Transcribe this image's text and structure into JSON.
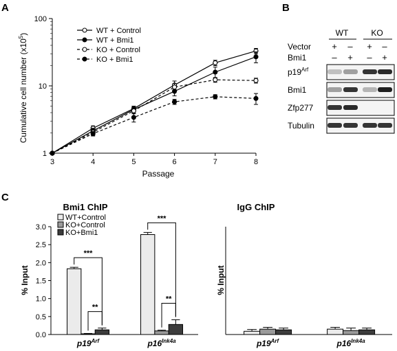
{
  "panels": {
    "a": "A",
    "b": "B",
    "c": "C"
  },
  "chart_data": [
    {
      "type": "line",
      "panel": "A",
      "xlabel": "Passage",
      "ylabel": "Cumulative cell number (x10",
      "ylabel_sup": "5",
      "ylabel_end": ")",
      "yscale": "log",
      "ylim": [
        1,
        100
      ],
      "xlim": [
        3,
        8
      ],
      "x": [
        3,
        4,
        5,
        6,
        7,
        8
      ],
      "xticks": [
        "3",
        "4",
        "5",
        "6",
        "7",
        "8"
      ],
      "yticks": [
        "1",
        "10",
        "100"
      ],
      "legend_position": "top-left",
      "series": [
        {
          "name": "WT + Control",
          "marker": "open",
          "dash": false,
          "values": [
            1,
            2.35,
            4.6,
            10.3,
            22,
            33
          ],
          "err": [
            0,
            0.2,
            0.4,
            1.5,
            2,
            3
          ]
        },
        {
          "name": "WT + Bmi1",
          "marker": "filled",
          "dash": false,
          "values": [
            1,
            2.15,
            4.45,
            8.3,
            16,
            27
          ],
          "err": [
            0,
            0.2,
            0.4,
            1.2,
            3,
            5
          ]
        },
        {
          "name": "KO + Control",
          "marker": "open",
          "dash": true,
          "values": [
            1,
            2.05,
            4.25,
            9.6,
            12.3,
            12
          ],
          "err": [
            0,
            0.2,
            0.4,
            1.2,
            1.0,
            1
          ]
        },
        {
          "name": "KO + Bmi1",
          "marker": "filled",
          "dash": true,
          "values": [
            1,
            1.95,
            3.4,
            5.8,
            6.9,
            6.5
          ],
          "err": [
            0,
            0.15,
            0.5,
            0.5,
            0.5,
            1.2
          ]
        }
      ]
    },
    {
      "type": "bar",
      "panel": "C-left",
      "title": "Bmi1 ChIP",
      "ylabel": "% Input",
      "ylim": [
        0,
        3.0
      ],
      "yticks": [
        "0.0",
        "0.5",
        "1.0",
        "1.5",
        "2.0",
        "2.5",
        "3.0"
      ],
      "categories": [
        "p19",
        "p16"
      ],
      "category_sups": [
        "Arf",
        "Ink4a"
      ],
      "legend_position": "top-left",
      "series": [
        {
          "name": "WT+Control",
          "color": "#ebebeb",
          "values": [
            1.83,
            2.78
          ],
          "err": [
            0.04,
            0.06
          ]
        },
        {
          "name": "KO+Control",
          "color": "#9a9a9a",
          "values": [
            0.02,
            0.1
          ],
          "err": [
            0.01,
            0.02
          ]
        },
        {
          "name": "KO+Bmi1",
          "color": "#3c3c3c",
          "values": [
            0.13,
            0.28
          ],
          "err": [
            0.05,
            0.13
          ]
        }
      ],
      "annotations": [
        {
          "text": "***",
          "cat": 0,
          "from": 0,
          "to": 2
        },
        {
          "text": "**",
          "cat": 0,
          "from": 1,
          "to": 2
        },
        {
          "text": "***",
          "cat": 1,
          "from": 0,
          "to": 2
        },
        {
          "text": "**",
          "cat": 1,
          "from": 1,
          "to": 2
        }
      ]
    },
    {
      "type": "bar",
      "panel": "C-right",
      "title": "IgG ChIP",
      "ylabel": "% Input",
      "ylim": [
        0,
        3.0
      ],
      "categories": [
        "p19",
        "p16"
      ],
      "category_sups": [
        "Arf",
        "Ink4a"
      ],
      "series": [
        {
          "name": "WT+Control",
          "color": "#ebebeb",
          "values": [
            0.09,
            0.15
          ],
          "err": [
            0.05,
            0.05
          ]
        },
        {
          "name": "KO+Control",
          "color": "#9a9a9a",
          "values": [
            0.15,
            0.11
          ],
          "err": [
            0.05,
            0.07
          ]
        },
        {
          "name": "KO+Bmi1",
          "color": "#3c3c3c",
          "values": [
            0.13,
            0.13
          ],
          "err": [
            0.05,
            0.05
          ]
        }
      ]
    }
  ],
  "blot": {
    "group_labels": [
      "WT",
      "KO"
    ],
    "conditions": [
      {
        "label": "Vector",
        "signs": [
          "+",
          "–",
          "+",
          "–"
        ]
      },
      {
        "label": "Bmi1",
        "signs": [
          "–",
          "+",
          "–",
          "+"
        ]
      }
    ],
    "rows": [
      {
        "label": "p19",
        "sup": "Arf",
        "intensity": [
          0.2,
          0.35,
          0.85,
          0.9
        ]
      },
      {
        "label": "Bmi1",
        "sup": "",
        "intensity": [
          0.35,
          0.85,
          0.25,
          0.95
        ]
      },
      {
        "label": "Zfp277",
        "sup": "",
        "intensity": [
          0.85,
          0.9,
          0.0,
          0.0
        ]
      },
      {
        "label": "Tubulin",
        "sup": "",
        "intensity": [
          0.85,
          0.85,
          0.85,
          0.85
        ]
      }
    ]
  }
}
